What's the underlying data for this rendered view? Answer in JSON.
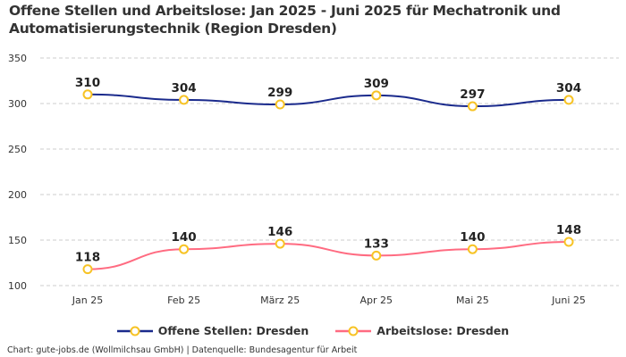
{
  "chart_data": {
    "type": "line",
    "title": "Offene Stellen und Arbeitslose: Jan 2025 - Juni 2025 für Mechatronik und Automatisierungstechnik (Region Dresden)",
    "categories": [
      "Jan 25",
      "Feb 25",
      "März 25",
      "Apr 25",
      "Mai 25",
      "Juni 25"
    ],
    "yticks": [
      100,
      150,
      200,
      250,
      300,
      350
    ],
    "ylim": [
      100,
      350
    ],
    "grid": true,
    "legend_position": "bottom",
    "series": [
      {
        "name": "Offene Stellen: Dresden",
        "color": "#1a2a8c",
        "values": [
          310,
          304,
          299,
          309,
          297,
          304
        ]
      },
      {
        "name": "Arbeitslose: Dresden",
        "color": "#ff6b81",
        "values": [
          118,
          140,
          146,
          133,
          140,
          148
        ]
      }
    ],
    "marker_color": "#f7c325"
  },
  "footer": "Chart: gute-jobs.de (Wollmilchsau GmbH) | Datenquelle: Bundesagentur für Arbeit"
}
